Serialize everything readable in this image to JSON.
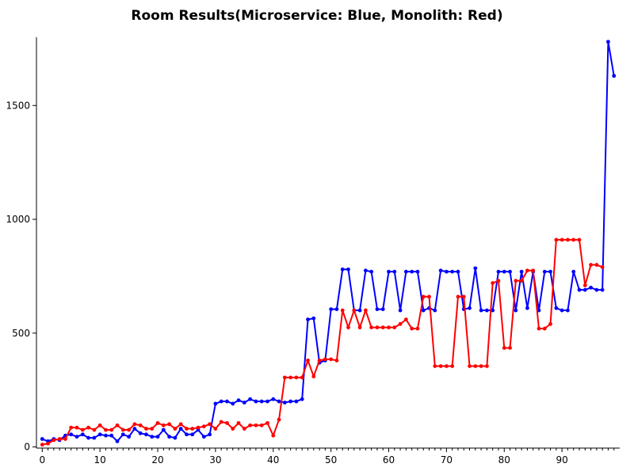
{
  "chart_data": {
    "type": "line",
    "title": "Room Results(Microservice: Blue, Monolith: Red)",
    "xlabel": "",
    "ylabel": "",
    "xlim": [
      -1,
      100
    ],
    "ylim": [
      -5,
      1800
    ],
    "grid": false,
    "legend": "none",
    "xticks": [
      0,
      10,
      20,
      30,
      40,
      50,
      60,
      70,
      80,
      90
    ],
    "yticks": [
      0,
      500,
      1000,
      1500
    ],
    "series": [
      {
        "color": "#0000ff",
        "x": [
          0,
          1,
          2,
          3,
          4,
          5,
          6,
          7,
          8,
          9,
          10,
          11,
          12,
          13,
          14,
          15,
          16,
          17,
          18,
          19,
          20,
          21,
          22,
          23,
          24,
          25,
          26,
          27,
          28,
          29,
          30,
          31,
          32,
          33,
          34,
          35,
          36,
          37,
          38,
          39,
          40,
          41,
          42,
          43,
          44,
          45,
          46,
          47,
          48,
          49,
          50,
          51,
          52,
          53,
          54,
          55,
          56,
          57,
          58,
          59,
          60,
          61,
          62,
          63,
          64,
          65,
          66,
          67,
          68,
          69,
          70,
          71,
          72,
          73,
          74,
          75,
          76,
          77,
          78,
          79,
          80,
          81,
          82,
          83,
          84,
          85,
          86,
          87,
          88,
          89,
          90,
          91,
          92,
          93,
          94,
          95,
          96,
          97,
          98,
          99
        ],
        "y": [
          35,
          25,
          35,
          30,
          50,
          55,
          45,
          55,
          40,
          40,
          55,
          50,
          50,
          25,
          55,
          45,
          80,
          60,
          55,
          45,
          45,
          75,
          45,
          40,
          80,
          55,
          55,
          75,
          45,
          55,
          190,
          200,
          200,
          190,
          205,
          195,
          210,
          200,
          200,
          200,
          210,
          200,
          195,
          200,
          200,
          210,
          560,
          565,
          370,
          380,
          605,
          605,
          780,
          780,
          600,
          600,
          775,
          770,
          605,
          605,
          770,
          770,
          600,
          770,
          770,
          770,
          600,
          610,
          600,
          775,
          770,
          770,
          770,
          605,
          610,
          785,
          600,
          600,
          600,
          770,
          770,
          770,
          600,
          770,
          610,
          770,
          600,
          770,
          770,
          610,
          600,
          600,
          770,
          690,
          690,
          700,
          690,
          690,
          1780,
          1630
        ]
      },
      {
        "color": "#ff0000",
        "x": [
          0,
          1,
          2,
          3,
          4,
          5,
          6,
          7,
          8,
          9,
          10,
          11,
          12,
          13,
          14,
          15,
          16,
          17,
          18,
          19,
          20,
          21,
          22,
          23,
          24,
          25,
          26,
          27,
          28,
          29,
          30,
          31,
          32,
          33,
          34,
          35,
          36,
          37,
          38,
          39,
          40,
          41,
          42,
          43,
          44,
          45,
          46,
          47,
          48,
          49,
          50,
          51,
          52,
          53,
          54,
          55,
          56,
          57,
          58,
          59,
          60,
          61,
          62,
          63,
          64,
          65,
          66,
          67,
          68,
          69,
          70,
          71,
          72,
          73,
          74,
          75,
          76,
          77,
          78,
          79,
          80,
          81,
          82,
          83,
          84,
          85,
          86,
          87,
          88,
          89,
          90,
          91,
          92,
          93,
          94,
          95,
          96,
          97
        ],
        "y": [
          10,
          15,
          30,
          35,
          35,
          85,
          85,
          75,
          85,
          75,
          95,
          75,
          75,
          95,
          75,
          75,
          100,
          95,
          80,
          80,
          105,
          95,
          100,
          80,
          100,
          80,
          80,
          85,
          90,
          100,
          80,
          110,
          105,
          80,
          105,
          80,
          95,
          95,
          95,
          105,
          50,
          120,
          305,
          305,
          305,
          305,
          380,
          310,
          380,
          385,
          385,
          380,
          600,
          525,
          600,
          525,
          600,
          525,
          525,
          525,
          525,
          525,
          540,
          560,
          520,
          520,
          660,
          660,
          355,
          355,
          355,
          355,
          660,
          660,
          355,
          355,
          355,
          355,
          720,
          730,
          435,
          435,
          730,
          730,
          775,
          775,
          520,
          520,
          540,
          910,
          910,
          910,
          910,
          910,
          710,
          800,
          800,
          790
        ]
      }
    ]
  }
}
